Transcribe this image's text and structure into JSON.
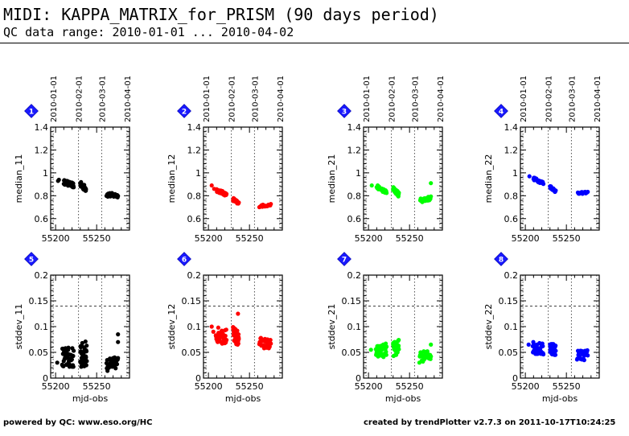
{
  "header": {
    "title": "MIDI: KAPPA_MATRIX_for_PRISM (90 days period)",
    "range": "QC data range: 2010-01-01 ... 2010-04-02"
  },
  "footer": {
    "left": "powered by QC: www.eso.org/HC",
    "right": "created by trendPlotter v2.7.3 on 2011-10-17T10:24:25"
  },
  "chart_data": [
    {
      "type": "scatter",
      "panel": "1",
      "color": "#000000",
      "ylabel": "median_11",
      "xlabel": "",
      "ylim": [
        0.5,
        1.4
      ],
      "yticks": [
        "0.6",
        "0.8",
        "1",
        "1.2",
        "1.4"
      ],
      "ytick_values": [
        0.6,
        0.8,
        1.0,
        1.2,
        1.4
      ],
      "xticks": [
        "55200",
        "55250"
      ],
      "xtick_values": [
        55200,
        55250
      ],
      "xlim": [
        55194,
        55290
      ],
      "top_ticks": [
        "2010-01-01",
        "2010-02-01",
        "2010-03-01",
        "2010-04-01"
      ],
      "top_tick_values": [
        55197,
        55228,
        55256,
        55287
      ],
      "points": []
    },
    {
      "type": "scatter",
      "panel": "2",
      "color": "#ff0000",
      "ylabel": "median_12",
      "xlabel": "",
      "ylim": [
        0.5,
        1.4
      ],
      "yticks": [
        "0.6",
        "0.8",
        "1",
        "1.2",
        "1.4"
      ],
      "ytick_values": [
        0.6,
        0.8,
        1.0,
        1.2,
        1.4
      ],
      "xticks": [
        "55200",
        "55250"
      ],
      "xtick_values": [
        55200,
        55250
      ],
      "xlim": [
        55194,
        55290
      ],
      "top_ticks": [
        "2010-01-01",
        "2010-02-01",
        "2010-03-01",
        "2010-04-01"
      ],
      "top_tick_values": [
        55197,
        55228,
        55256,
        55287
      ],
      "points": []
    },
    {
      "type": "scatter",
      "panel": "3",
      "color": "#00ff00",
      "ylabel": "median_21",
      "xlabel": "",
      "ylim": [
        0.5,
        1.4
      ],
      "yticks": [
        "0.6",
        "0.8",
        "1",
        "1.2",
        "1.4"
      ],
      "ytick_values": [
        0.6,
        0.8,
        1.0,
        1.2,
        1.4
      ],
      "xticks": [
        "55200",
        "55250"
      ],
      "xtick_values": [
        55200,
        55250
      ],
      "xlim": [
        55194,
        55290
      ],
      "top_ticks": [
        "2010-01-01",
        "2010-02-01",
        "2010-03-01",
        "2010-04-01"
      ],
      "top_tick_values": [
        55197,
        55228,
        55256,
        55287
      ],
      "points": []
    },
    {
      "type": "scatter",
      "panel": "4",
      "color": "#0000ff",
      "ylabel": "median_22",
      "xlabel": "",
      "ylim": [
        0.5,
        1.4
      ],
      "yticks": [
        "0.6",
        "0.8",
        "1",
        "1.2",
        "1.4"
      ],
      "ytick_values": [
        0.6,
        0.8,
        1.0,
        1.2,
        1.4
      ],
      "xticks": [
        "55200",
        "55250"
      ],
      "xtick_values": [
        55200,
        55250
      ],
      "xlim": [
        55194,
        55290
      ],
      "top_ticks": [
        "2010-01-01",
        "2010-02-01",
        "2010-03-01",
        "2010-04-01"
      ],
      "top_tick_values": [
        55197,
        55228,
        55256,
        55287
      ],
      "points": []
    },
    {
      "type": "scatter",
      "panel": "5",
      "color": "#000000",
      "ylabel": "stddev_11",
      "xlabel": "mjd-obs",
      "ylim": [
        0,
        0.2
      ],
      "yticks": [
        "0",
        "0.05",
        "0.1",
        "0.15",
        "0.2"
      ],
      "ytick_values": [
        0,
        0.05,
        0.1,
        0.15,
        0.2
      ],
      "ref_line": 0.14,
      "xticks": [
        "55200",
        "55250"
      ],
      "xtick_values": [
        55200,
        55250
      ],
      "xlim": [
        55194,
        55290
      ],
      "points": []
    },
    {
      "type": "scatter",
      "panel": "6",
      "color": "#ff0000",
      "ylabel": "stddev_12",
      "xlabel": "mjd-obs",
      "ylim": [
        0,
        0.2
      ],
      "yticks": [
        "0",
        "0.05",
        "0.1",
        "0.15",
        "0.2"
      ],
      "ytick_values": [
        0,
        0.05,
        0.1,
        0.15,
        0.2
      ],
      "ref_line": 0.14,
      "xticks": [
        "55200",
        "55250"
      ],
      "xtick_values": [
        55200,
        55250
      ],
      "xlim": [
        55194,
        55290
      ],
      "points": []
    },
    {
      "type": "scatter",
      "panel": "7",
      "color": "#00ff00",
      "ylabel": "stddev_21",
      "xlabel": "mjd-obs",
      "ylim": [
        0,
        0.2
      ],
      "yticks": [
        "0",
        "0.05",
        "0.1",
        "0.15",
        "0.2"
      ],
      "ytick_values": [
        0,
        0.05,
        0.1,
        0.15,
        0.2
      ],
      "ref_line": 0.14,
      "xticks": [
        "55200",
        "55250"
      ],
      "xtick_values": [
        55200,
        55250
      ],
      "xlim": [
        55194,
        55290
      ],
      "points": []
    },
    {
      "type": "scatter",
      "panel": "8",
      "color": "#0000ff",
      "ylabel": "stddev_22",
      "xlabel": "mjd-obs",
      "ylim": [
        0,
        0.2
      ],
      "yticks": [
        "0",
        "0.05",
        "0.1",
        "0.15",
        "0.2"
      ],
      "ytick_values": [
        0,
        0.05,
        0.1,
        0.15,
        0.2
      ],
      "ref_line": 0.14,
      "xticks": [
        "55200",
        "55250"
      ],
      "xtick_values": [
        55200,
        55250
      ],
      "xlim": [
        55194,
        55290
      ],
      "points": []
    }
  ]
}
